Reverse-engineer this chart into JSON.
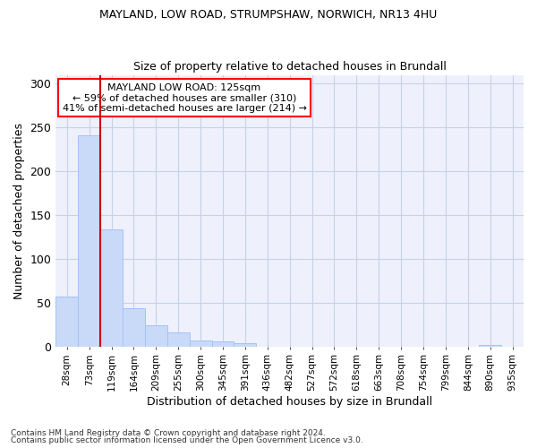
{
  "title1": "MAYLAND, LOW ROAD, STRUMPSHAW, NORWICH, NR13 4HU",
  "title2": "Size of property relative to detached houses in Brundall",
  "xlabel": "Distribution of detached houses by size in Brundall",
  "ylabel": "Number of detached properties",
  "bin_labels": [
    "28sqm",
    "73sqm",
    "119sqm",
    "164sqm",
    "209sqm",
    "255sqm",
    "300sqm",
    "345sqm",
    "391sqm",
    "436sqm",
    "482sqm",
    "527sqm",
    "572sqm",
    "618sqm",
    "663sqm",
    "708sqm",
    "754sqm",
    "799sqm",
    "844sqm",
    "890sqm",
    "935sqm"
  ],
  "bar_heights": [
    57,
    241,
    134,
    44,
    24,
    16,
    7,
    6,
    4,
    0,
    0,
    0,
    0,
    0,
    0,
    0,
    0,
    0,
    0,
    2,
    0
  ],
  "bar_color": "#c9daf8",
  "bar_edge_color": "#a4c2f4",
  "vline_color": "#cc0000",
  "annotation_text": "MAYLAND LOW ROAD: 125sqm\n← 59% of detached houses are smaller (310)\n41% of semi-detached houses are larger (214) →",
  "annotation_box_color": "white",
  "annotation_box_edge_color": "red",
  "ylim_max": 310,
  "yticks": [
    0,
    50,
    100,
    150,
    200,
    250,
    300
  ],
  "footer1": "Contains HM Land Registry data © Crown copyright and database right 2024.",
  "footer2": "Contains public sector information licensed under the Open Government Licence v3.0.",
  "background_color": "#eef1fb",
  "grid_color": "#c8d0e8"
}
